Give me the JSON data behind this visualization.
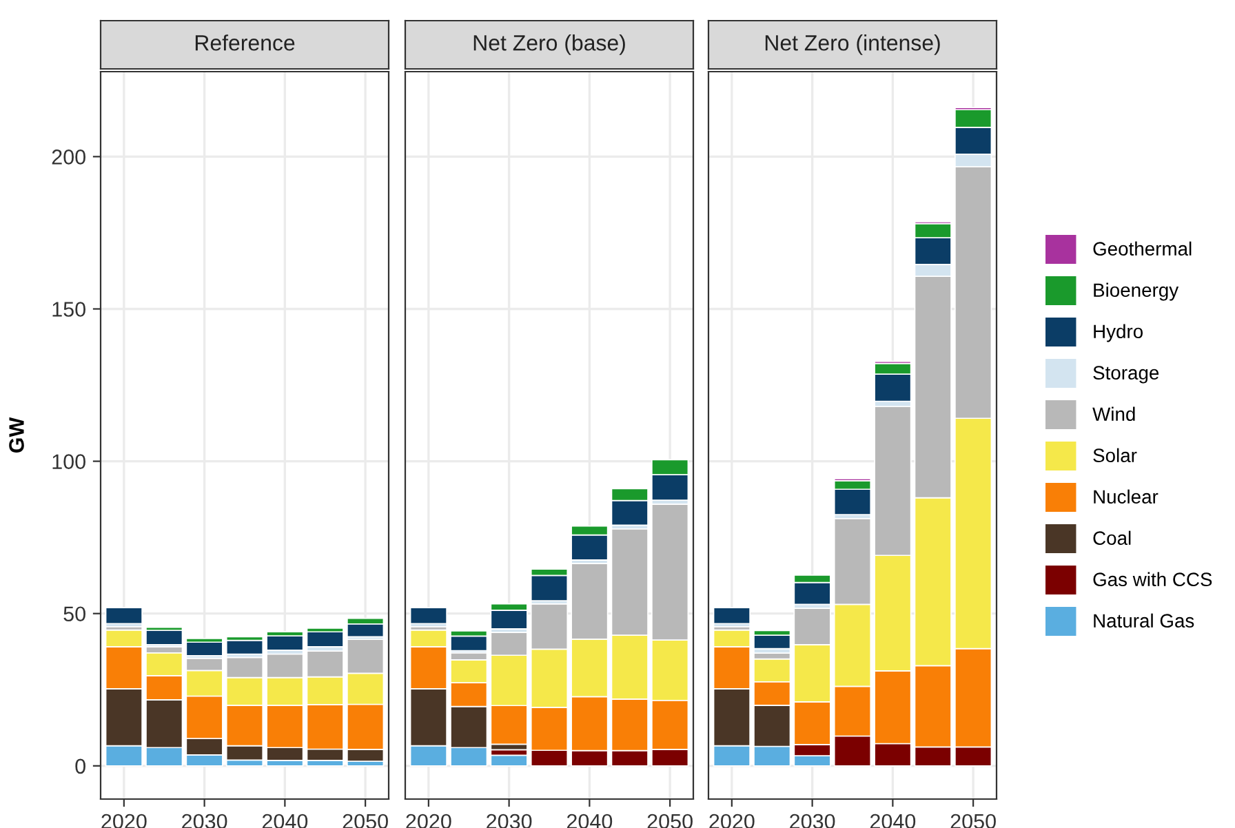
{
  "chart_data": [
    {
      "type": "bar",
      "stacked": true,
      "title": "Reference",
      "ylabel": "GW",
      "x": [
        2020,
        2025,
        2030,
        2035,
        2040,
        2045,
        2050
      ],
      "xlim": [
        2017.1,
        2052.9
      ],
      "xticks": [
        2020,
        2030,
        2040,
        2050
      ],
      "ylim": [
        -10.9,
        227.9
      ],
      "yticks": [
        0,
        50,
        100,
        150,
        200
      ],
      "grid": true,
      "series": [
        {
          "color": "#5aaee0",
          "values": [
            6.6,
            6.0,
            3.6,
            1.9,
            1.8,
            1.8,
            1.5
          ]
        },
        {
          "color": "#4a3626",
          "values": [
            18.7,
            15.7,
            5.4,
            4.7,
            4.2,
            3.7,
            3.9
          ]
        },
        {
          "color": "#f97f06",
          "values": [
            13.8,
            7.9,
            13.9,
            13.3,
            13.9,
            14.6,
            14.8
          ]
        },
        {
          "color": "#f5e84a",
          "values": [
            5.5,
            7.5,
            8.4,
            9.1,
            9.1,
            9.1,
            10.2
          ]
        },
        {
          "color": "#b8b8b8",
          "values": [
            1.1,
            2.0,
            4.0,
            6.6,
            7.7,
            8.5,
            11.1
          ]
        },
        {
          "color": "#d3e4f0",
          "values": [
            1.0,
            0.7,
            0.9,
            1.1,
            1.3,
            1.4,
            0.9
          ]
        },
        {
          "color": "#0b3d66",
          "values": [
            5.2,
            4.7,
            4.4,
            4.5,
            4.7,
            4.9,
            4.2
          ]
        },
        {
          "color": "#1a9a2c",
          "values": [
            null,
            1.0,
            1.2,
            1.2,
            1.3,
            1.2,
            1.8
          ]
        }
      ]
    },
    {
      "type": "bar",
      "stacked": true,
      "title": "Net Zero (base)",
      "x": [
        2020,
        2025,
        2030,
        2035,
        2040,
        2045,
        2050
      ],
      "xlim": [
        2017.1,
        2052.9
      ],
      "xticks": [
        2020,
        2030,
        2040,
        2050
      ],
      "ylim": [
        -10.9,
        227.9
      ],
      "yticks": [
        0,
        50,
        100,
        150,
        200
      ],
      "tick_labels": "x",
      "grid": true,
      "series": [
        {
          "color": "#5aaee0",
          "values": [
            6.6,
            6.0,
            3.5,
            null,
            null,
            null,
            null
          ]
        },
        {
          "color": "#7b0000",
          "values": [
            null,
            null,
            1.8,
            5.1,
            5.0,
            5.0,
            5.4
          ]
        },
        {
          "color": "#4a3626",
          "values": [
            18.7,
            13.5,
            1.8,
            null,
            null,
            null,
            null
          ]
        },
        {
          "color": "#f97f06",
          "values": [
            13.8,
            7.8,
            12.7,
            14.1,
            17.7,
            16.9,
            16.1
          ]
        },
        {
          "color": "#f5e84a",
          "values": [
            5.5,
            7.5,
            16.5,
            19.1,
            18.9,
            21.0,
            19.8
          ]
        },
        {
          "color": "#b8b8b8",
          "values": [
            1.1,
            2.3,
            7.5,
            14.9,
            24.8,
            34.9,
            44.6
          ]
        },
        {
          "color": "#d3e4f0",
          "values": [
            1.0,
            0.7,
            1.2,
            1.0,
            1.2,
            1.2,
            1.3
          ]
        },
        {
          "color": "#0b3d66",
          "values": [
            5.2,
            4.8,
            6.1,
            8.3,
            8.2,
            8.1,
            8.4
          ]
        },
        {
          "color": "#1a9a2c",
          "values": [
            null,
            1.7,
            2.1,
            2.1,
            2.9,
            3.9,
            4.9
          ]
        }
      ]
    },
    {
      "type": "bar",
      "stacked": true,
      "title": "Net Zero (intense)",
      "x": [
        2020,
        2025,
        2030,
        2035,
        2040,
        2045,
        2050
      ],
      "xlim": [
        2017.1,
        2052.9
      ],
      "xticks": [
        2020,
        2030,
        2040,
        2050
      ],
      "ylim": [
        -10.9,
        227.9
      ],
      "yticks": [
        0,
        50,
        100,
        150,
        200
      ],
      "tick_labels": "x",
      "grid": true,
      "legend": "right",
      "series": [
        {
          "name": "Natural Gas",
          "color": "#5aaee0",
          "values": [
            6.6,
            6.4,
            3.3,
            null,
            null,
            null,
            null
          ]
        },
        {
          "name": "Gas with CCS",
          "color": "#7b0000",
          "values": [
            null,
            null,
            3.7,
            9.8,
            7.3,
            6.2,
            6.2
          ]
        },
        {
          "name": "Coal",
          "color": "#4a3626",
          "values": [
            18.7,
            13.5,
            null,
            null,
            null,
            null,
            null
          ]
        },
        {
          "name": "Nuclear",
          "color": "#f97f06",
          "values": [
            13.8,
            7.7,
            14.0,
            16.3,
            23.9,
            26.7,
            32.3
          ]
        },
        {
          "name": "Solar",
          "color": "#f5e84a",
          "values": [
            5.5,
            7.5,
            18.8,
            26.9,
            37.9,
            55.1,
            75.6
          ]
        },
        {
          "name": "Wind",
          "color": "#b8b8b8",
          "values": [
            1.1,
            1.9,
            11.9,
            28.2,
            48.9,
            72.7,
            82.6
          ]
        },
        {
          "name": "Storage",
          "color": "#d3e4f0",
          "values": [
            1.0,
            1.5,
            1.3,
            1.3,
            1.7,
            3.9,
            4.1
          ]
        },
        {
          "name": "Hydro",
          "color": "#0b3d66",
          "values": [
            5.2,
            4.4,
            7.2,
            8.3,
            8.9,
            8.8,
            8.8
          ]
        },
        {
          "name": "Bioenergy",
          "color": "#1a9a2c",
          "values": [
            null,
            1.5,
            2.4,
            2.8,
            3.5,
            4.6,
            5.8
          ]
        },
        {
          "name": "Geothermal",
          "color": "#a8329e",
          "values": [
            null,
            null,
            null,
            0.7,
            0.7,
            0.6,
            0.7
          ]
        }
      ]
    }
  ]
}
